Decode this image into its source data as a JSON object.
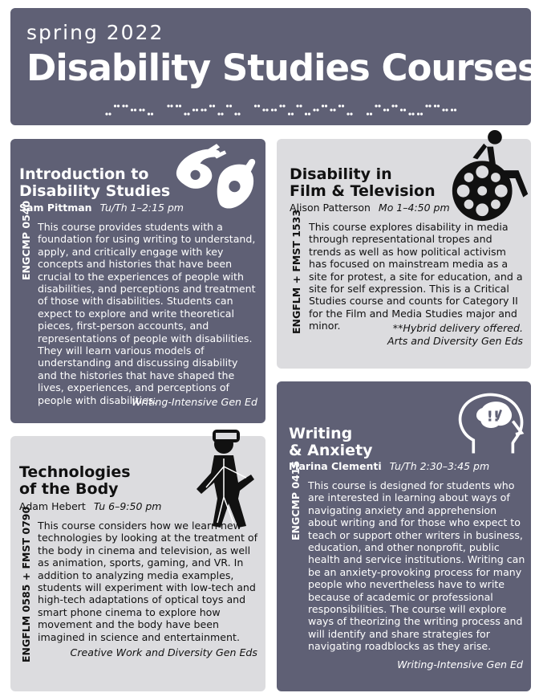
{
  "header": {
    "season": "spring 2022",
    "title": "Disability Studies Courses"
  },
  "courses": [
    {
      "title": "Introduction to Disability Studies",
      "title_line1": "Introduction to",
      "title_line2": "Disability Studies",
      "instructor": "Sam Pittman",
      "time": "Tu/Th 1–2:15 pm",
      "code": "ENGCMP 0540",
      "description": "This course provides students with a foundation for using writing to understand, apply, and critically engage with key concepts and histories that have been crucial to the experiences of people with disabilities, and perceptions and treatment of those with disabilities. Students can expect to explore and write theoretical pieces, first-person accounts, and representations of people with disabilities. They will learn various models of understanding and discussing disability and the histories that have shaped the lives, experiences, and perceptions of people with disabilities.",
      "gened": "Writing-Intensive Gen Ed"
    },
    {
      "title_line1": "Disability in",
      "title_line2": "Film & Television",
      "instructor": "Alison Patterson",
      "time": "Mo 1–4:50 pm",
      "code": "ENGFLM + FMST 1533",
      "description": "This course explores disability in media through representational tropes and trends as well as how political activism has focused on mainstream media as a site for protest, a site for education, and a site for self expression. This is a Critical Studies course and counts for Category II for the Film and Media Studies major and minor.",
      "note": "**Hybrid delivery offered.",
      "gened": "Arts and Diversity Gen Eds"
    },
    {
      "title_line1": "Technologies",
      "title_line2": "of the Body",
      "instructor": "Adam Hebert",
      "time": "Tu 6–9:50 pm",
      "code": "ENGFLM 0585 + FMST 0790",
      "description": "This course considers how we learn new technologies by looking at the treatment of the body in cinema and television, as well as animation, sports, gaming, and VR. In addition to analyzing media examples, students will experiment with low-tech and high-tech adaptations of optical toys and smart phone cinema to explore how movement and the body have been imagined in science and entertainment.",
      "gened": "Creative Work and Diversity Gen Eds"
    },
    {
      "title_line1": "Writing",
      "title_line2": "& Anxiety",
      "instructor": "Marina Clementi",
      "time": "Tu/Th 2:30–3:45 pm",
      "code": "ENGCMP 0415",
      "description": "This course is designed for students who are interested in learning about ways of navigating anxiety and apprehension about writing and for those who expect to teach or support other writers in business, education, and other nonprofit, public health and service institutions. Writing can be an anxiety-provoking process for many people who nevertheless have to write because of academic or professional responsibilities. The course will explore ways of theorizing the writing process and will identify and share strategies for navigating roadblocks as they arise.",
      "gened": "Writing-Intensive Gen Ed"
    }
  ],
  "icons": [
    "sign-language-hands-icon",
    "wheelchair-film-reel-icon",
    "vr-walking-figure-icon",
    "head-anxiety-icon"
  ],
  "colors": {
    "dark_panel": "#5f6075",
    "light_panel": "#dcdcdf"
  }
}
